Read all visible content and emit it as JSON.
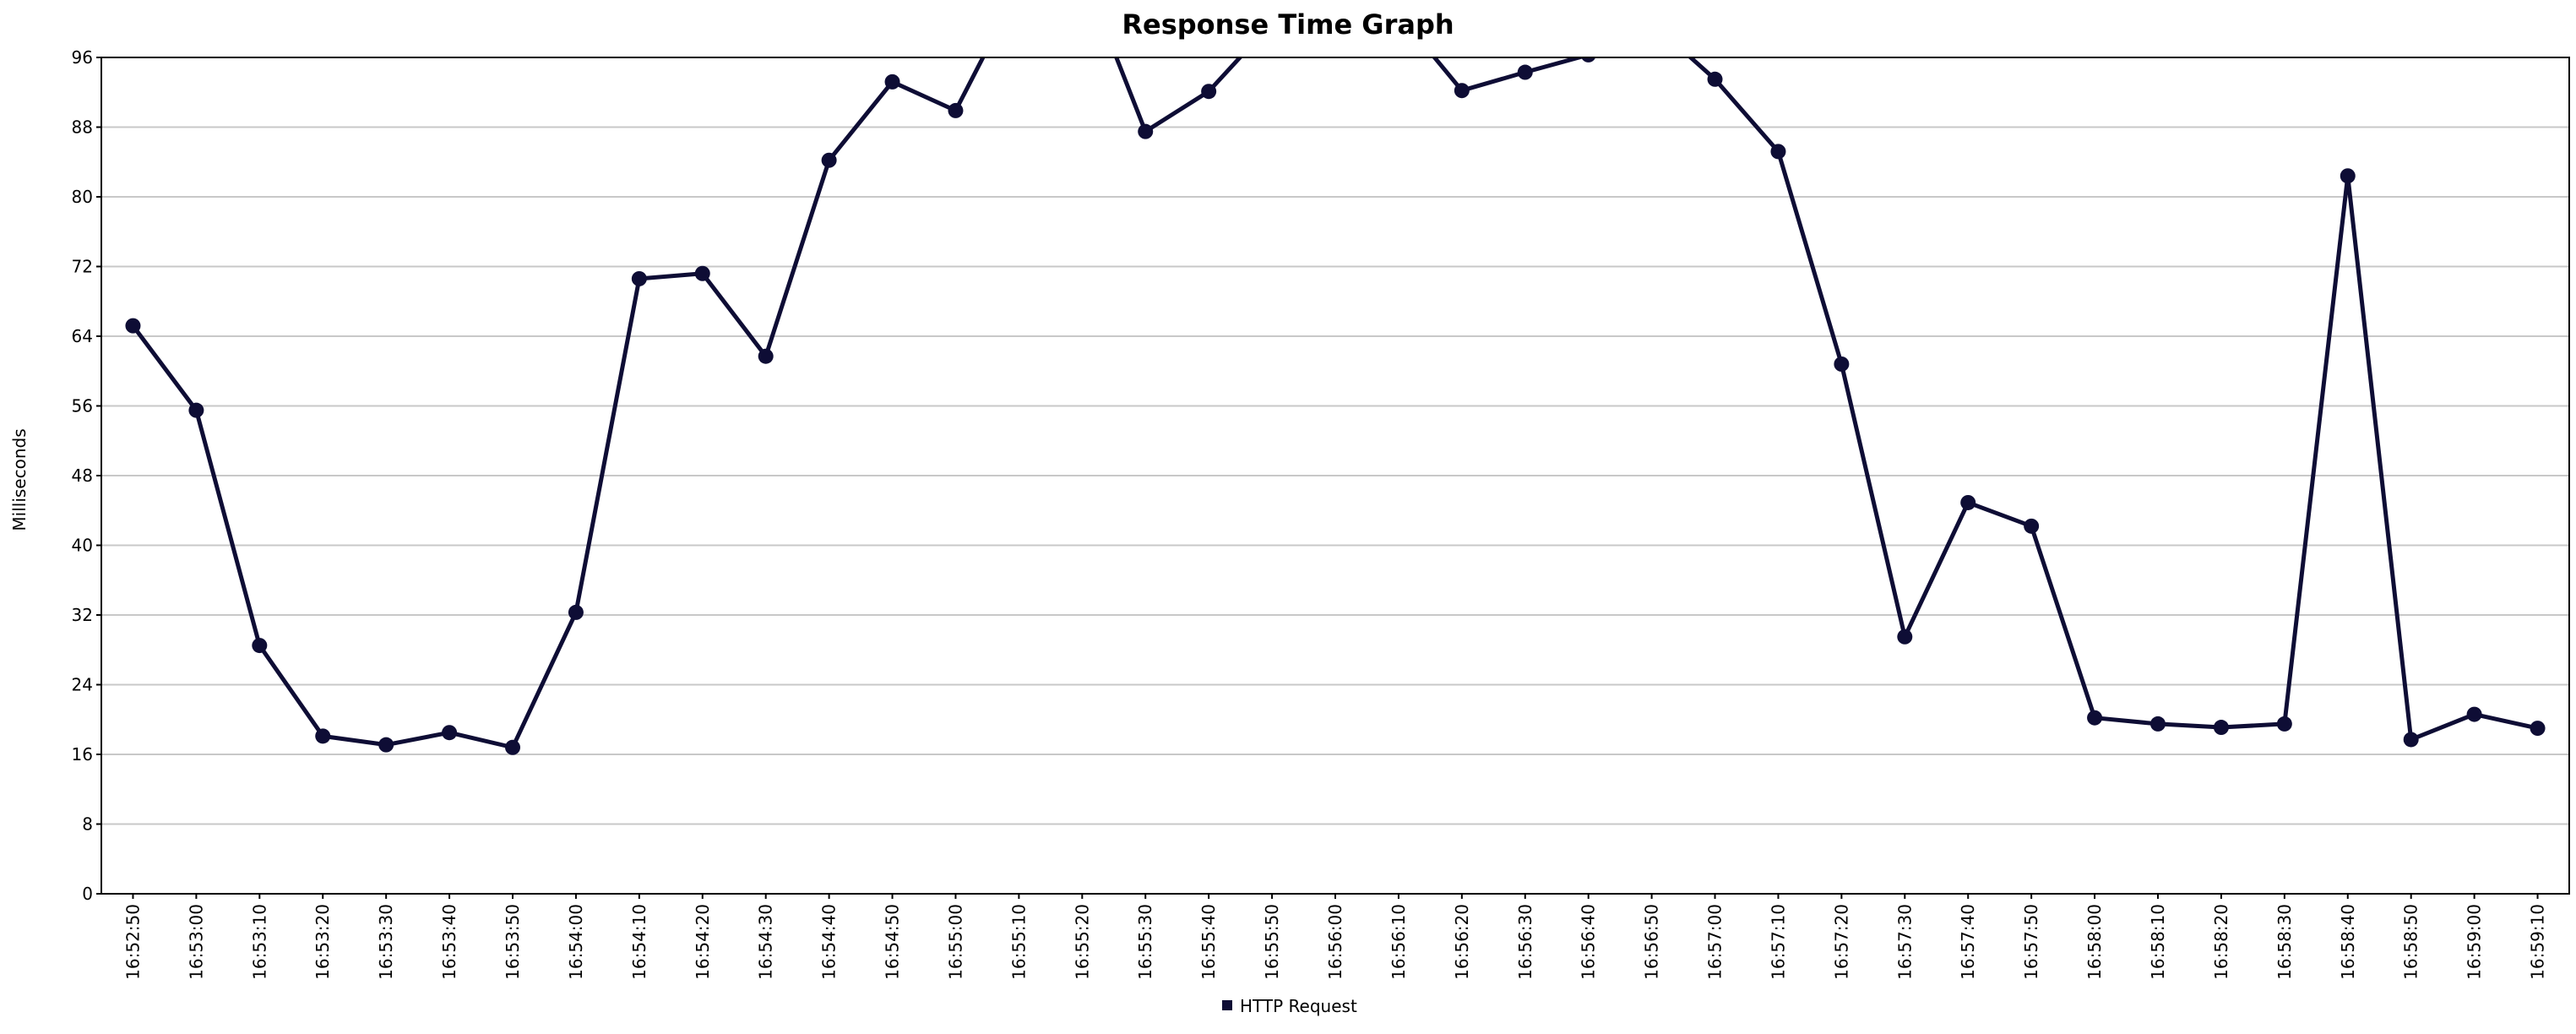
{
  "chart_data": {
    "type": "line",
    "title": "Response Time Graph",
    "xlabel": "",
    "ylabel": "Milliseconds",
    "ylim": [
      0,
      96
    ],
    "yticks": [
      0,
      8,
      16,
      24,
      32,
      40,
      48,
      56,
      64,
      72,
      80,
      88,
      96
    ],
    "grid": true,
    "legend_position": "bottom-center",
    "colors": {
      "series": "#0e0d35",
      "grid": "#c8c8c8",
      "axis": "#000000"
    },
    "categories": [
      "16:52:50",
      "16:53:00",
      "16:53:10",
      "16:53:20",
      "16:53:30",
      "16:53:40",
      "16:53:50",
      "16:54:00",
      "16:54:10",
      "16:54:20",
      "16:54:30",
      "16:54:40",
      "16:54:50",
      "16:55:00",
      "16:55:10",
      "16:55:20",
      "16:55:30",
      "16:55:40",
      "16:55:50",
      "16:56:00",
      "16:56:10",
      "16:56:20",
      "16:56:30",
      "16:56:40",
      "16:56:50",
      "16:57:00",
      "16:57:10",
      "16:57:20",
      "16:57:30",
      "16:57:40",
      "16:57:50",
      "16:58:00",
      "16:58:10",
      "16:58:20",
      "16:58:30",
      "16:58:40",
      "16:58:50",
      "16:59:00",
      "16:59:10"
    ],
    "series": [
      {
        "name": "HTTP Request",
        "values": [
          65.2,
          55.5,
          28.5,
          18.1,
          17.1,
          18.5,
          16.8,
          32.3,
          70.6,
          71.2,
          61.7,
          84.2,
          93.2,
          89.9,
          104,
          106,
          87.5,
          92.1,
          100,
          103,
          101,
          92.2,
          94.3,
          96.3,
          100,
          93.5,
          85.2,
          60.8,
          29.5,
          44.9,
          42.2,
          20.2,
          19.5,
          19.1,
          19.5,
          82.4,
          17.7,
          20.6,
          19.0
        ]
      }
    ]
  }
}
